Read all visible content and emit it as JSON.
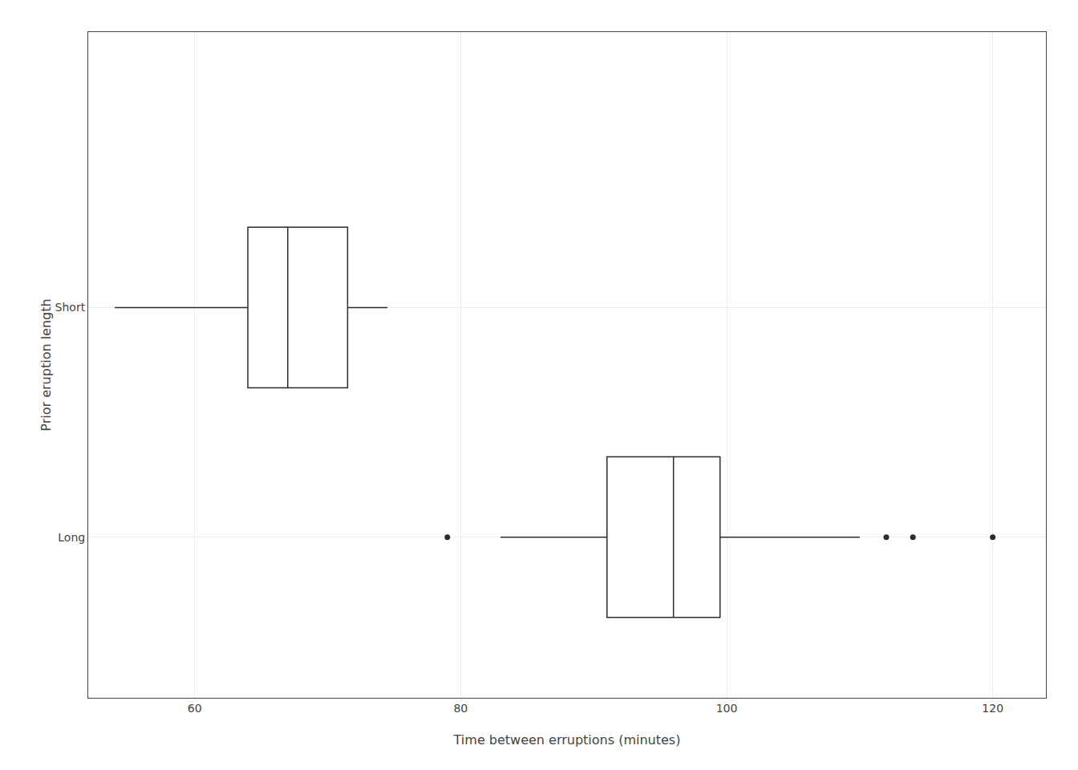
{
  "chart_data": {
    "type": "box",
    "orientation": "horizontal",
    "xlabel": "Time between erruptions (minutes)",
    "ylabel": "Prior eruption length",
    "xlim": [
      52,
      124
    ],
    "xticks": [
      60,
      80,
      100,
      120
    ],
    "ylim": [
      0.3,
      3.2
    ],
    "yticks": [
      {
        "value": 1,
        "label": "Long"
      },
      {
        "value": 2,
        "label": "Short"
      }
    ],
    "grid": true,
    "color": "#2B2B2B",
    "boxes": [
      {
        "label": "Short",
        "q1": 64.0,
        "median": 67.0,
        "q3": 71.5,
        "whisker_low": 54.0,
        "whisker_high": 74.5,
        "outliers": []
      },
      {
        "label": "Long",
        "q1": 91.0,
        "median": 96.0,
        "q3": 99.5,
        "whisker_low": 83.0,
        "whisker_high": 110.0,
        "outliers": [
          79.0,
          112.0,
          114.0,
          120.0
        ]
      }
    ]
  }
}
